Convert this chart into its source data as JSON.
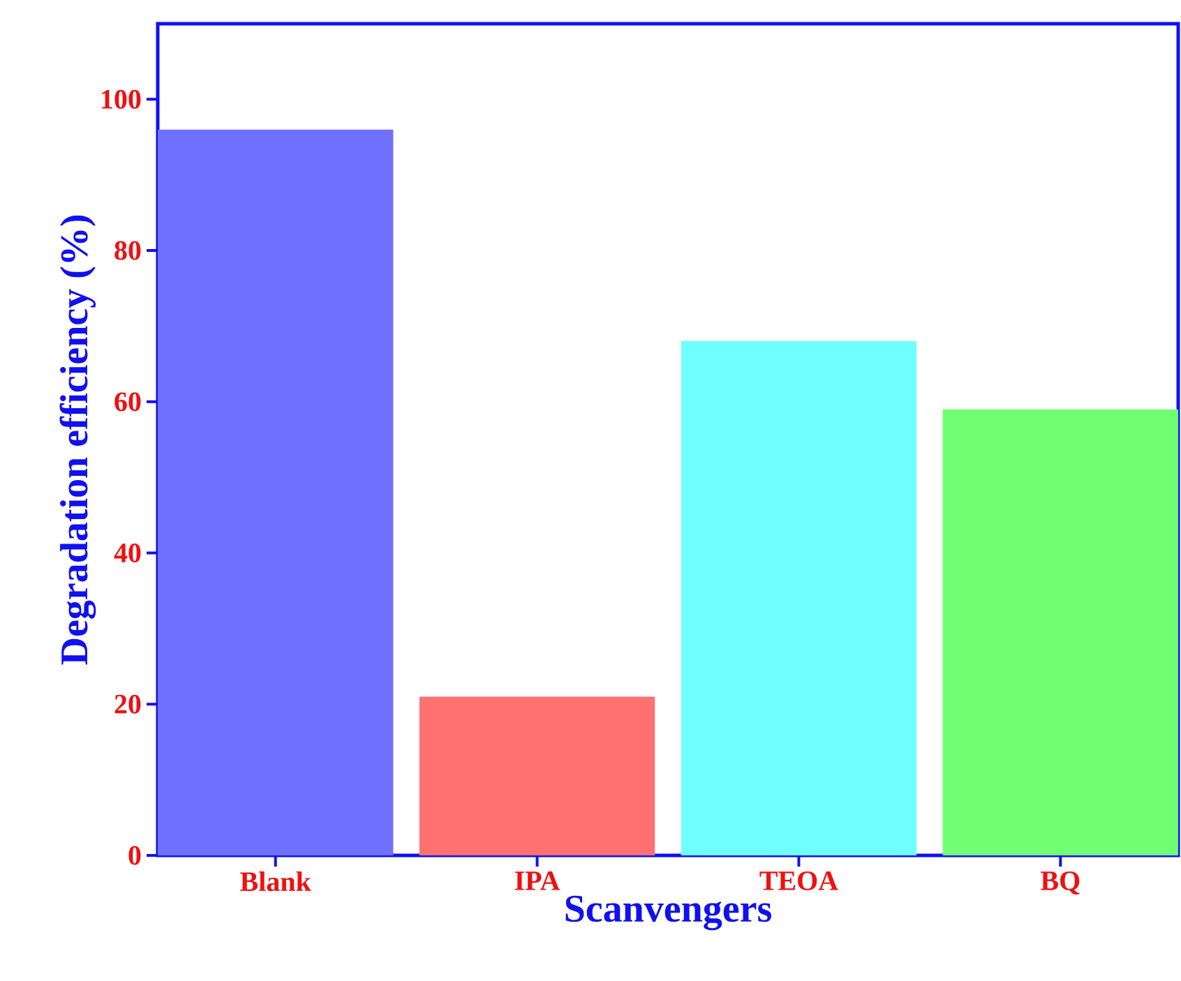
{
  "chart_data": {
    "type": "bar",
    "xlabel": "Scanvengers",
    "ylabel": "Degradation efficiency (%)",
    "categories": [
      "Blank",
      "IPA",
      "TEOA",
      "BQ"
    ],
    "values": [
      96,
      21,
      68,
      59
    ],
    "colors": [
      "#7070ff",
      "#ff7070",
      "#70ffff",
      "#70ff70"
    ],
    "ylim": [
      0,
      110
    ],
    "yticks": [
      0,
      20,
      40,
      60,
      80,
      100
    ]
  }
}
